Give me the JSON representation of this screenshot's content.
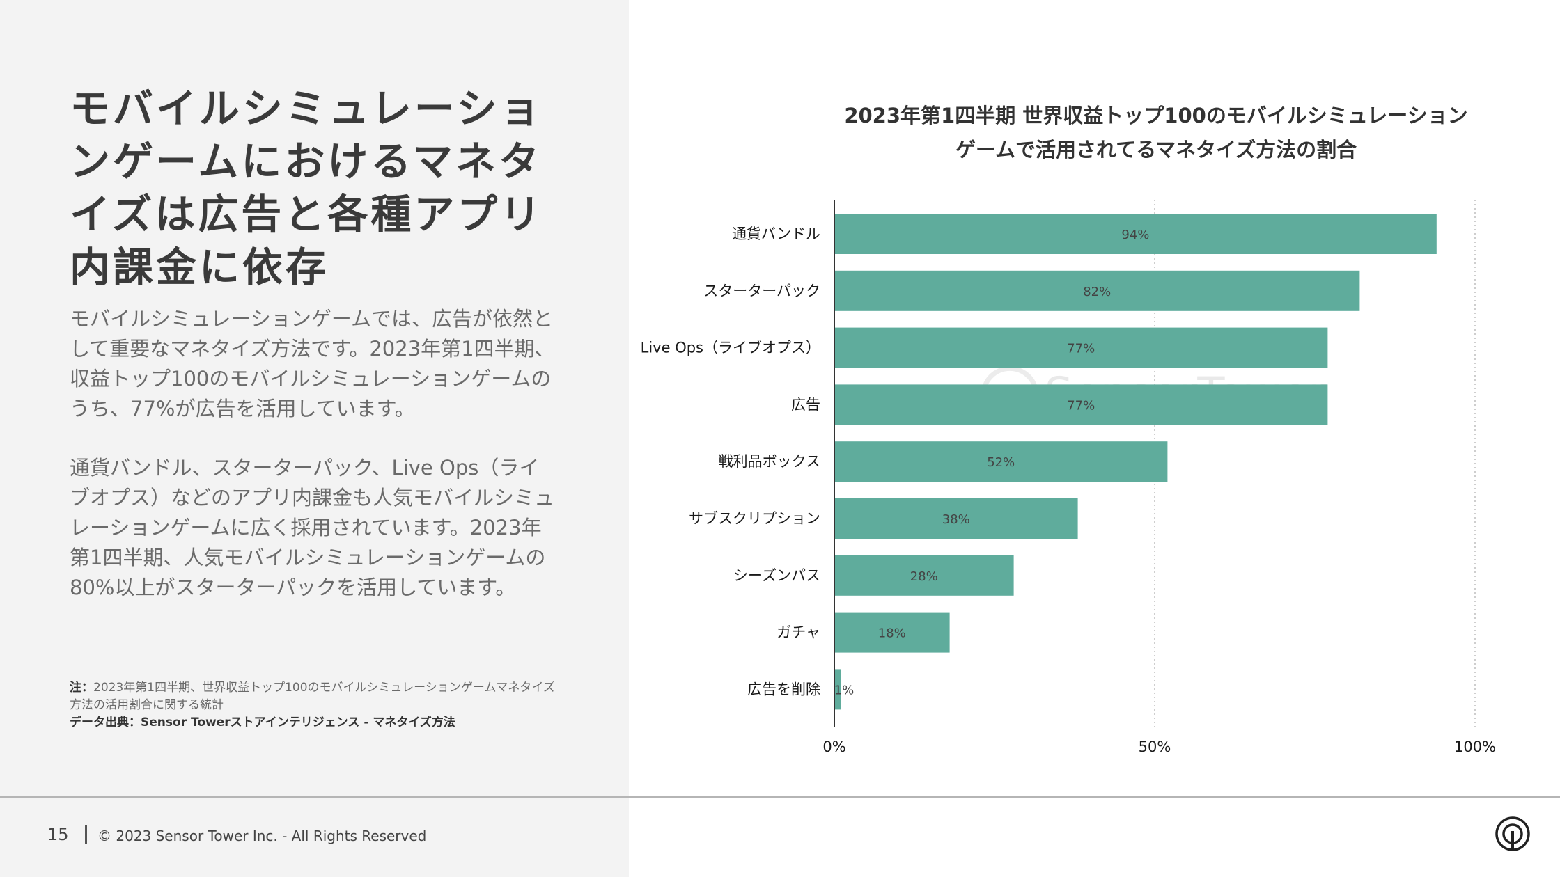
{
  "headline": "モバイルシミュレーションゲームにおけるマネタイズは広告と各種アプリ内課金に依存",
  "paragraphs": [
    "モバイルシミュレーションゲームでは、広告が依然として重要なマネタイズ方法です。2023年第1四半期、収益トップ100のモバイルシミュレーションゲームのうち、77%が広告を活用しています。",
    "通貨バンドル、スターターパック、Live Ops（ライブオプス）などのアプリ内課金も人気モバイルシミュレーションゲームに広く採用されています。2023年第1四半期、人気モバイルシミュレーションゲームの80%以上がスターターパックを活用しています。"
  ],
  "note": {
    "label": "注：",
    "text": "2023年第1四半期、世界収益トップ100のモバイルシミュレーションゲームマネタイズ方法の活用割合に関する統計",
    "source": "データ出典：Sensor Towerストアインテリジェンス - マネタイズ方法"
  },
  "footer": {
    "page_number": "15",
    "copyright": "© 2023 Sensor Tower Inc. - All Rights Reserved"
  },
  "colors": {
    "bar": "#5fac9c",
    "left_bg": "#f3f3f3"
  },
  "chart_data": {
    "type": "bar",
    "orientation": "horizontal",
    "title_lines": [
      "2023年第1四半期 世界収益トップ100のモバイルシミュレーション",
      "ゲームで活用されてるマネタイズ方法の割合"
    ],
    "categories": [
      "通貨バンドル",
      "スターターパック",
      "Live Ops（ライブオプス）",
      "広告",
      "戦利品ボックス",
      "サブスクリプション",
      "シーズンパス",
      "ガチャ",
      "広告を削除"
    ],
    "values": [
      94,
      82,
      77,
      77,
      52,
      38,
      28,
      18,
      1
    ],
    "value_labels": [
      "94%",
      "82%",
      "77%",
      "77%",
      "52%",
      "38%",
      "28%",
      "18%",
      "1%"
    ],
    "xlim": [
      0,
      100
    ],
    "x_ticks": [
      0,
      50,
      100
    ],
    "x_tick_labels": [
      "0%",
      "50%",
      "100%"
    ],
    "grid": "vertical dotted",
    "watermark": "SensorTower"
  }
}
